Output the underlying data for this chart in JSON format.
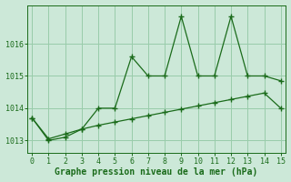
{
  "line1_x": [
    0,
    1,
    2,
    3,
    4,
    5,
    6,
    7,
    8,
    9,
    10,
    11,
    12,
    13,
    14,
    15
  ],
  "line1_y": [
    1013.7,
    1013.0,
    1013.1,
    1013.35,
    1014.0,
    1014.0,
    1015.6,
    1015.0,
    1015.0,
    1016.85,
    1015.0,
    1015.0,
    1016.85,
    1015.0,
    1015.0,
    1014.85
  ],
  "line2_x": [
    0,
    1,
    2,
    3,
    4,
    5,
    6,
    7,
    8,
    9,
    10,
    11,
    12,
    13,
    14,
    15
  ],
  "line2_y": [
    1013.7,
    1013.05,
    1013.2,
    1013.35,
    1013.47,
    1013.57,
    1013.67,
    1013.77,
    1013.87,
    1013.97,
    1014.07,
    1014.17,
    1014.27,
    1014.37,
    1014.47,
    1014.0
  ],
  "line_color": "#1a6b1a",
  "bg_color": "#cce8d8",
  "grid_color": "#99ccaa",
  "xlabel": "Graphe pression niveau de la mer (hPa)",
  "xlim": [
    -0.3,
    15.3
  ],
  "ylim": [
    1012.6,
    1017.2
  ],
  "yticks": [
    1013,
    1014,
    1015,
    1016
  ],
  "xticks": [
    0,
    1,
    2,
    3,
    4,
    5,
    6,
    7,
    8,
    9,
    10,
    11,
    12,
    13,
    14,
    15
  ],
  "xlabel_fontsize": 7.0,
  "tick_fontsize": 6.0,
  "marker_size": 4,
  "linewidth": 0.9
}
